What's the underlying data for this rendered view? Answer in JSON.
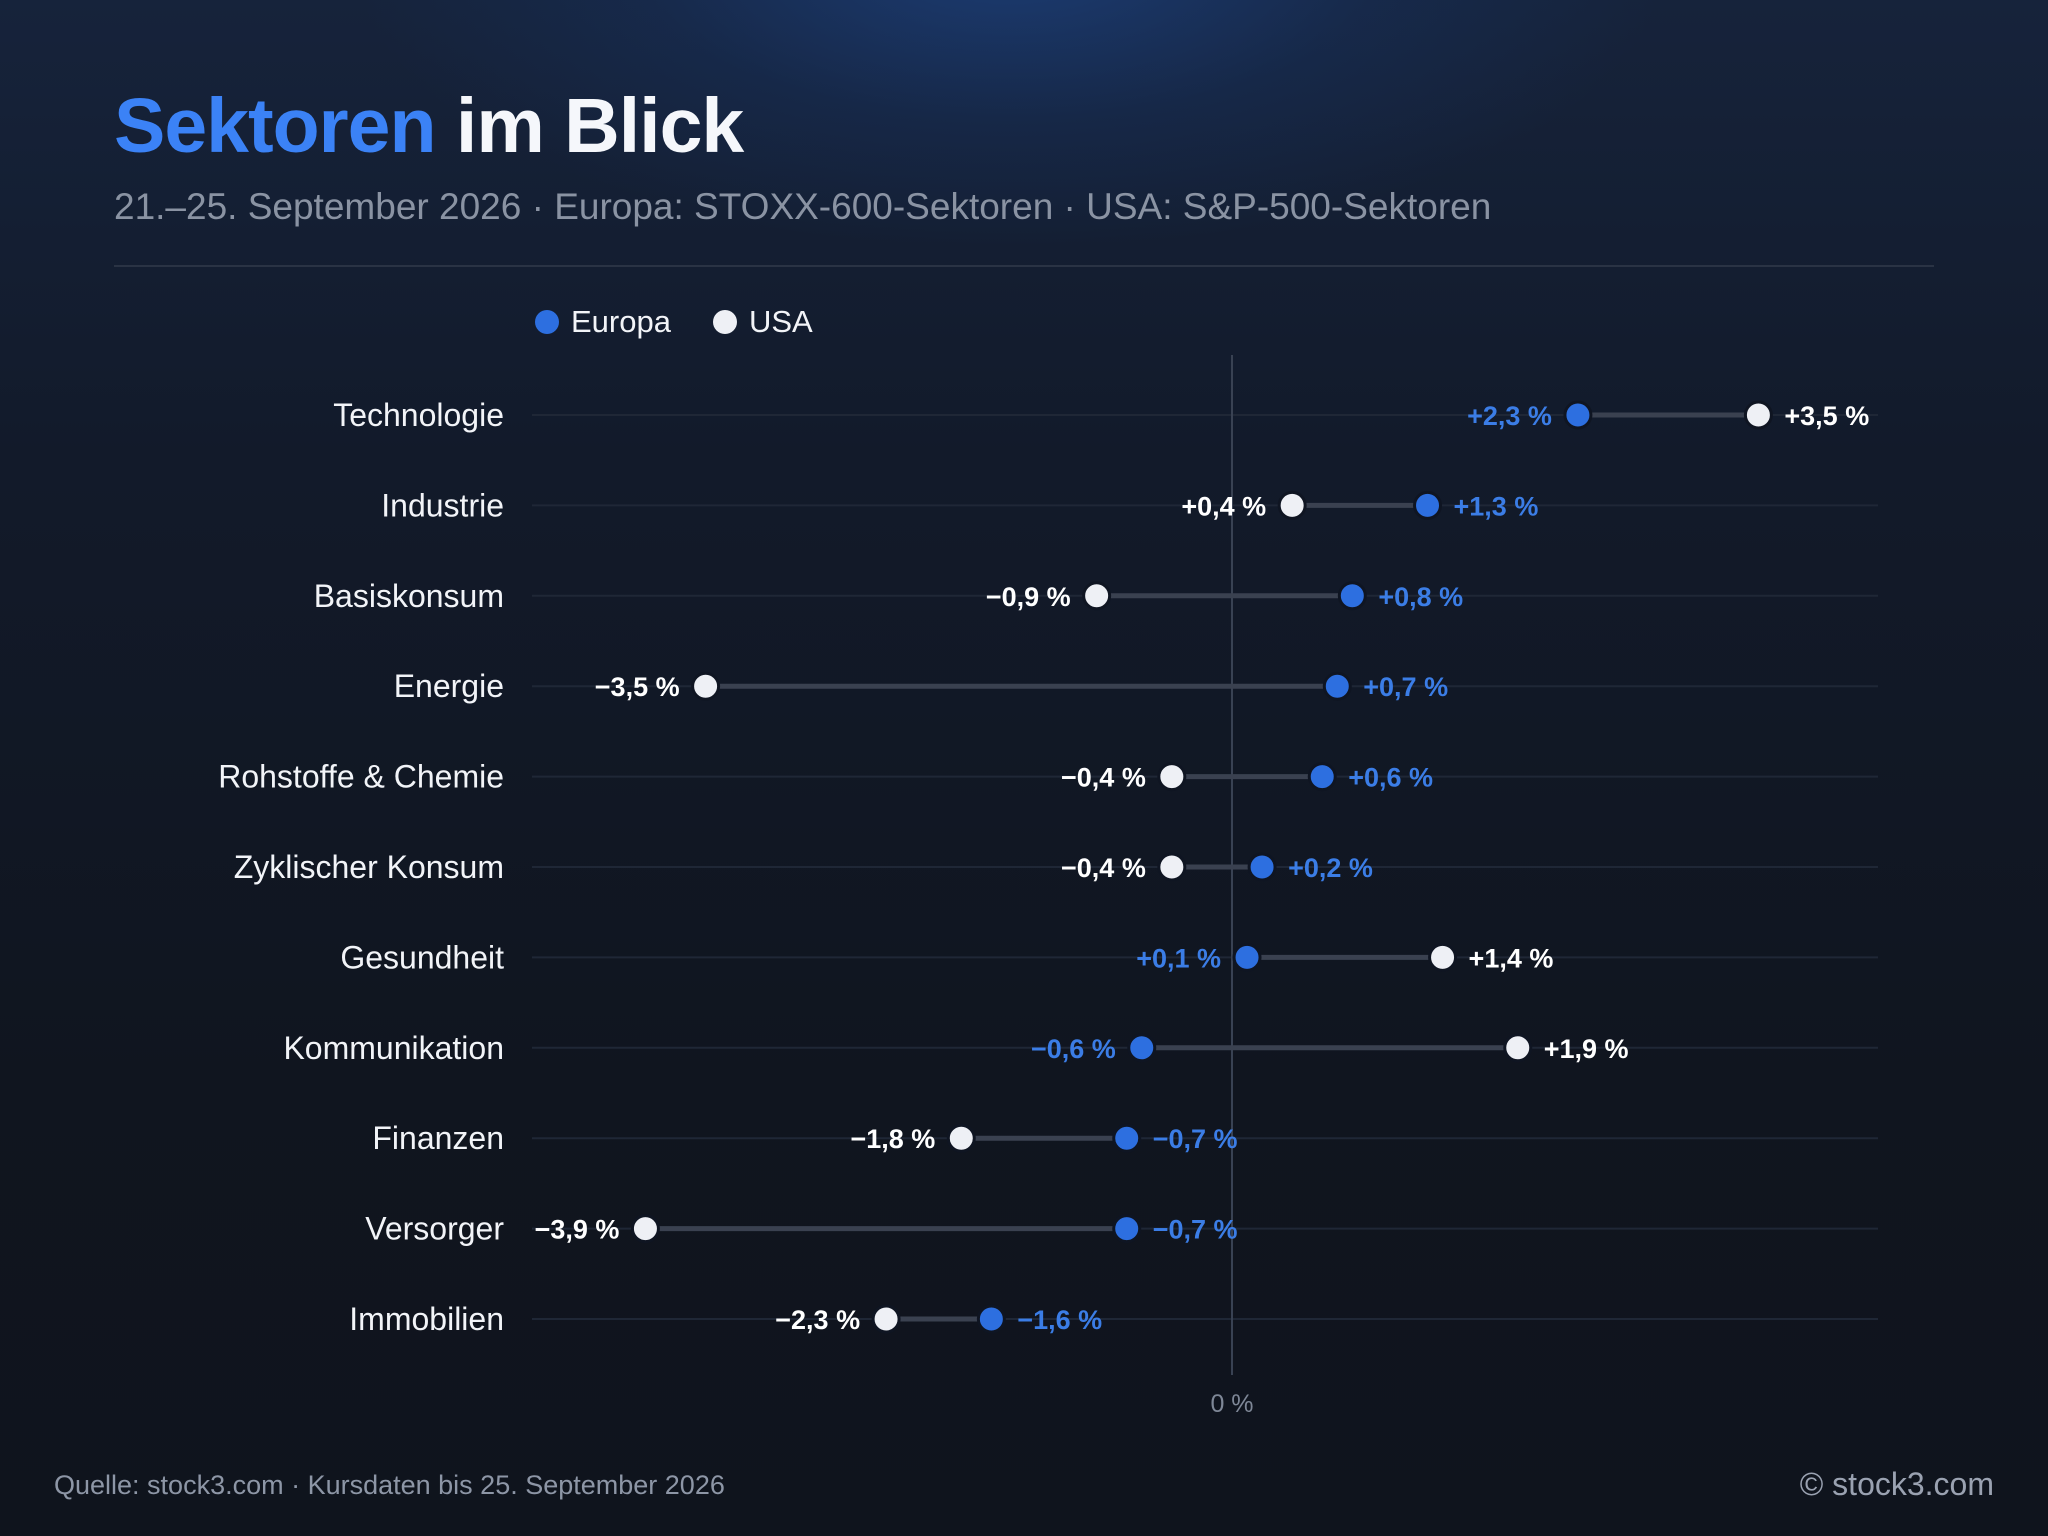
{
  "header": {
    "title_accent": "Sektoren",
    "title_rest": "im Blick",
    "subtitle": "21.–25. September 2026 · Europa: STOXX-600-Sektoren · USA: S&P-500-Sektoren"
  },
  "legend": {
    "europa": "Europa",
    "usa": "USA"
  },
  "colors": {
    "europa": "#2d6fe0",
    "europa_label": "#3b7de6",
    "usa": "#eef0f5",
    "usa_label": "#ffffff"
  },
  "chart_data": {
    "type": "dumbbell",
    "title": "Sektoren im Blick",
    "zero_label": "0 %",
    "x_domain": [
      -4.0,
      4.0
    ],
    "series": [
      {
        "name": "Europa",
        "key": "eu"
      },
      {
        "name": "USA",
        "key": "us"
      }
    ],
    "rows": [
      {
        "sector": "Technologie",
        "eu": 2.3,
        "eu_label": "+2,3 %",
        "us": 3.5,
        "us_label": "+3,5 %"
      },
      {
        "sector": "Industrie",
        "eu": 1.3,
        "eu_label": "+1,3 %",
        "us": 0.4,
        "us_label": "+0,4 %"
      },
      {
        "sector": "Basiskonsum",
        "eu": 0.8,
        "eu_label": "+0,8 %",
        "us": -0.9,
        "us_label": "−0,9 %"
      },
      {
        "sector": "Energie",
        "eu": 0.7,
        "eu_label": "+0,7 %",
        "us": -3.5,
        "us_label": "−3,5 %"
      },
      {
        "sector": "Rohstoffe & Chemie",
        "eu": 0.6,
        "eu_label": "+0,6 %",
        "us": -0.4,
        "us_label": "−0,4 %"
      },
      {
        "sector": "Zyklischer Konsum",
        "eu": 0.2,
        "eu_label": "+0,2 %",
        "us": -0.4,
        "us_label": "−0,4 %"
      },
      {
        "sector": "Gesundheit",
        "eu": 0.1,
        "eu_label": "+0,1 %",
        "us": 1.4,
        "us_label": "+1,4 %"
      },
      {
        "sector": "Kommunikation",
        "eu": -0.6,
        "eu_label": "−0,6 %",
        "us": 1.9,
        "us_label": "+1,9 %"
      },
      {
        "sector": "Finanzen",
        "eu": -0.7,
        "eu_label": "−0,7 %",
        "us": -1.8,
        "us_label": "−1,8 %"
      },
      {
        "sector": "Versorger",
        "eu": -0.7,
        "eu_label": "−0,7 %",
        "us": -3.9,
        "us_label": "−3,9 %"
      },
      {
        "sector": "Immobilien",
        "eu": -1.6,
        "eu_label": "−1,6 %",
        "us": -2.3,
        "us_label": "−2,3 %"
      }
    ]
  },
  "footer": {
    "source": "Quelle: stock3.com · Kursdaten bis 25. September 2026",
    "copyright": "© stock3.com"
  }
}
